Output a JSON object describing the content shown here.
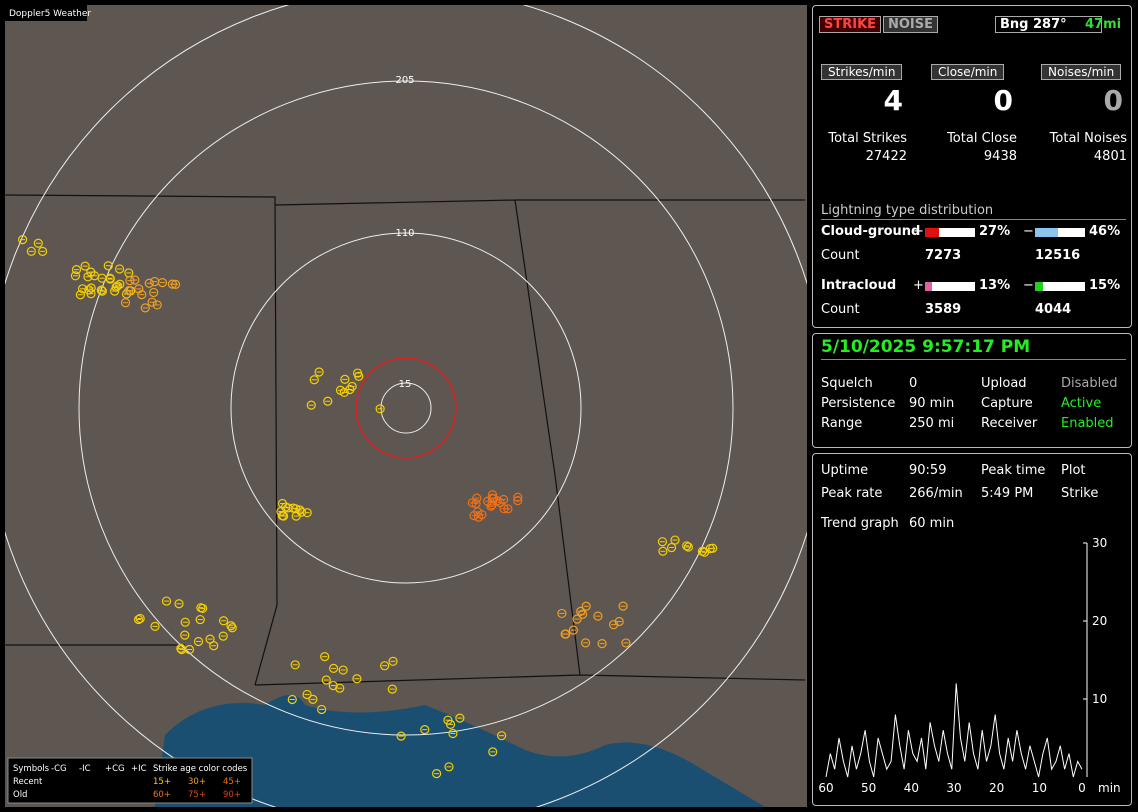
{
  "map": {
    "title": "Doppler5 Weather",
    "rings": [
      "205",
      "110",
      "15"
    ],
    "legend": {
      "headers": [
        "Symbols",
        "-CG",
        "-IC",
        "+CG",
        "+IC",
        "Strike age color codes"
      ],
      "rows": [
        {
          "label": "Recent",
          "ages": [
            "15+",
            "30+",
            "45+"
          ]
        },
        {
          "label": "Old",
          "ages": [
            "60+",
            "75+",
            "90+"
          ]
        }
      ]
    }
  },
  "status": {
    "strike": "STRIKE",
    "noise": "NOISE",
    "bearing": "Bng 287°",
    "distance": "47mi"
  },
  "rates": [
    {
      "label": "Strikes/min",
      "value": 4
    },
    {
      "label": "Close/min",
      "value": 0
    },
    {
      "label": "Noises/min",
      "value": 0
    }
  ],
  "totals": [
    {
      "label": "Total Strikes",
      "value": 27422
    },
    {
      "label": "Total Close",
      "value": 9438
    },
    {
      "label": "Total Noises",
      "value": 4801
    }
  ],
  "distribution": {
    "title": "Lightning type distribution",
    "count_label": "Count",
    "rows": [
      {
        "name": "Cloud-ground",
        "items": [
          {
            "sign": "+",
            "color": "#e01010",
            "pct": 27,
            "pct_label": "27%",
            "count": 7273
          },
          {
            "sign": "−",
            "color": "#8cc4f0",
            "pct": 46,
            "pct_label": "46%",
            "count": 12516
          }
        ]
      },
      {
        "name": "Intracloud",
        "items": [
          {
            "sign": "+",
            "color": "#e060a0",
            "pct": 13,
            "pct_label": "13%",
            "count": 3589
          },
          {
            "sign": "−",
            "color": "#20d020",
            "pct": 15,
            "pct_label": "15%",
            "count": 4044
          }
        ]
      }
    ]
  },
  "clock": "5/10/2025 9:57:17 PM",
  "settings": [
    [
      "Squelch",
      "0",
      "Upload",
      "Disabled"
    ],
    [
      "Persistence",
      "90 min",
      "Capture",
      "Active"
    ],
    [
      "Range",
      "250 mi",
      "Receiver",
      "Enabled"
    ]
  ],
  "stats": [
    [
      "Uptime",
      "90:59",
      "Peak time",
      "Plot"
    ],
    [
      "Peak rate",
      "266/min",
      "5:49 PM",
      "Strike"
    ]
  ],
  "trend": {
    "label": "Trend graph",
    "window": "60 min",
    "type": "line",
    "color": "#ffffff",
    "ylim": [
      0,
      30
    ],
    "yticks": [
      10,
      20,
      30
    ],
    "xlim": [
      60,
      0
    ],
    "xticks": [
      60,
      50,
      40,
      30,
      20,
      10,
      0
    ],
    "x_unit": "min",
    "values": [
      0,
      3,
      1,
      5,
      2,
      0,
      4,
      1,
      3,
      6,
      2,
      0,
      5,
      3,
      1,
      2,
      8,
      4,
      1,
      6,
      3,
      2,
      5,
      1,
      7,
      4,
      2,
      6,
      3,
      1,
      12,
      5,
      2,
      7,
      3,
      1,
      6,
      2,
      4,
      8,
      3,
      1,
      5,
      2,
      6,
      3,
      1,
      4,
      2,
      0,
      3,
      5,
      1,
      2,
      4,
      1,
      3,
      0,
      2,
      1
    ]
  }
}
